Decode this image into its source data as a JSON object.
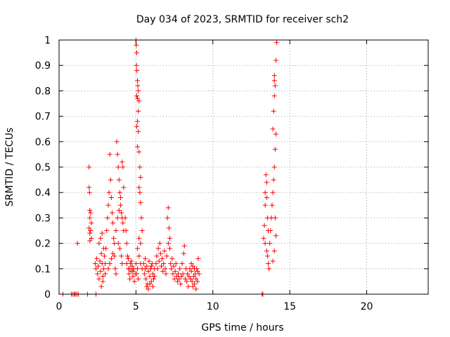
{
  "chart_data": {
    "type": "scatter",
    "title": "Day 034 of 2023, SRMTID for receiver sch2",
    "xlabel": "GPS time / hours",
    "ylabel": "SRMTID / TECUs",
    "xlim": [
      0,
      24
    ],
    "ylim": [
      0,
      1
    ],
    "xticks": [
      0,
      5,
      10,
      15,
      20
    ],
    "xtick_labels": [
      "0",
      "5",
      "10",
      "15",
      "20"
    ],
    "yticks": [
      0,
      0.1,
      0.2,
      0.3,
      0.4,
      0.5,
      0.6,
      0.7,
      0.8,
      0.9,
      1
    ],
    "ytick_labels": [
      "0",
      "0.1",
      "0.2",
      "0.3",
      "0.4",
      "0.5",
      "0.6",
      "0.7",
      "0.8",
      "0.9",
      "1"
    ],
    "grid": true,
    "marker": "plus",
    "color": "#ff0000",
    "series": [
      {
        "name": "SRMTID",
        "points": [
          [
            0.25,
            0.0
          ],
          [
            0.8,
            0.0
          ],
          [
            0.9,
            0.0
          ],
          [
            1.0,
            0.0
          ],
          [
            1.05,
            0.0
          ],
          [
            1.15,
            0.0
          ],
          [
            1.25,
            0.0
          ],
          [
            1.85,
            0.0
          ],
          [
            2.4,
            0.0
          ],
          [
            1.2,
            0.2
          ],
          [
            1.95,
            0.5
          ],
          [
            1.95,
            0.42
          ],
          [
            1.98,
            0.4
          ],
          [
            2.0,
            0.33
          ],
          [
            2.05,
            0.32
          ],
          [
            2.0,
            0.3
          ],
          [
            2.1,
            0.28
          ],
          [
            1.95,
            0.26
          ],
          [
            2.05,
            0.25
          ],
          [
            2.0,
            0.24
          ],
          [
            2.1,
            0.22
          ],
          [
            2.0,
            0.21
          ],
          [
            2.35,
            0.12
          ],
          [
            2.4,
            0.1
          ],
          [
            2.45,
            0.14
          ],
          [
            2.5,
            0.08
          ],
          [
            2.55,
            0.11
          ],
          [
            2.6,
            0.06
          ],
          [
            2.65,
            0.13
          ],
          [
            2.7,
            0.09
          ],
          [
            2.75,
            0.16
          ],
          [
            2.8,
            0.12
          ],
          [
            2.85,
            0.05
          ],
          [
            2.9,
            0.1
          ],
          [
            2.95,
            0.15
          ],
          [
            3.0,
            0.08
          ],
          [
            2.6,
            0.2
          ],
          [
            2.7,
            0.22
          ],
          [
            2.8,
            0.24
          ],
          [
            2.9,
            0.18
          ],
          [
            2.75,
            0.03
          ],
          [
            2.85,
            0.07
          ],
          [
            3.0,
            0.12
          ],
          [
            3.05,
            0.18
          ],
          [
            3.1,
            0.25
          ],
          [
            3.15,
            0.3
          ],
          [
            3.2,
            0.35
          ],
          [
            3.25,
            0.4
          ],
          [
            3.3,
            0.55
          ],
          [
            3.35,
            0.45
          ],
          [
            3.4,
            0.38
          ],
          [
            3.45,
            0.32
          ],
          [
            3.5,
            0.28
          ],
          [
            3.55,
            0.22
          ],
          [
            3.6,
            0.15
          ],
          [
            3.65,
            0.1
          ],
          [
            3.7,
            0.08
          ],
          [
            3.2,
            0.1
          ],
          [
            3.3,
            0.12
          ],
          [
            3.4,
            0.14
          ],
          [
            3.5,
            0.16
          ],
          [
            3.6,
            0.2
          ],
          [
            3.7,
            0.25
          ],
          [
            3.75,
            0.6
          ],
          [
            3.8,
            0.55
          ],
          [
            3.85,
            0.5
          ],
          [
            3.9,
            0.45
          ],
          [
            3.95,
            0.4
          ],
          [
            4.0,
            0.35
          ],
          [
            4.05,
            0.32
          ],
          [
            4.1,
            0.3
          ],
          [
            4.15,
            0.28
          ],
          [
            4.2,
            0.25
          ],
          [
            3.8,
            0.3
          ],
          [
            3.9,
            0.33
          ],
          [
            4.0,
            0.38
          ],
          [
            4.1,
            0.52
          ],
          [
            4.15,
            0.5
          ],
          [
            4.2,
            0.42
          ],
          [
            3.85,
            0.2
          ],
          [
            3.95,
            0.18
          ],
          [
            4.05,
            0.15
          ],
          [
            4.1,
            0.12
          ],
          [
            4.3,
            0.3
          ],
          [
            4.35,
            0.25
          ],
          [
            4.4,
            0.2
          ],
          [
            4.45,
            0.15
          ],
          [
            4.5,
            0.1
          ],
          [
            4.55,
            0.08
          ],
          [
            4.6,
            0.06
          ],
          [
            4.65,
            0.12
          ],
          [
            4.7,
            0.09
          ],
          [
            4.75,
            0.11
          ],
          [
            4.8,
            0.07
          ],
          [
            4.85,
            0.1
          ],
          [
            4.9,
            0.05
          ],
          [
            4.95,
            0.08
          ],
          [
            4.4,
            0.12
          ],
          [
            4.5,
            0.14
          ],
          [
            4.6,
            0.1
          ],
          [
            4.7,
            0.13
          ],
          [
            4.8,
            0.09
          ],
          [
            5.0,
            1.0
          ],
          [
            5.02,
            0.98
          ],
          [
            5.05,
            0.95
          ],
          [
            5.03,
            0.9
          ],
          [
            5.06,
            0.88
          ],
          [
            5.1,
            0.84
          ],
          [
            5.12,
            0.82
          ],
          [
            5.15,
            0.8
          ],
          [
            5.05,
            0.78
          ],
          [
            5.1,
            0.77
          ],
          [
            5.2,
            0.76
          ],
          [
            5.15,
            0.72
          ],
          [
            5.1,
            0.68
          ],
          [
            5.05,
            0.66
          ],
          [
            5.15,
            0.64
          ],
          [
            5.1,
            0.58
          ],
          [
            5.2,
            0.56
          ],
          [
            5.25,
            0.5
          ],
          [
            5.3,
            0.46
          ],
          [
            5.2,
            0.42
          ],
          [
            5.25,
            0.4
          ],
          [
            5.3,
            0.36
          ],
          [
            5.35,
            0.3
          ],
          [
            5.4,
            0.25
          ],
          [
            5.2,
            0.22
          ],
          [
            5.3,
            0.2
          ],
          [
            5.1,
            0.18
          ],
          [
            5.2,
            0.15
          ],
          [
            5.3,
            0.12
          ],
          [
            5.4,
            0.1
          ],
          [
            5.0,
            0.12
          ],
          [
            5.05,
            0.08
          ],
          [
            5.1,
            0.1
          ],
          [
            5.15,
            0.06
          ],
          [
            5.5,
            0.12
          ],
          [
            5.55,
            0.08
          ],
          [
            5.6,
            0.1
          ],
          [
            5.65,
            0.06
          ],
          [
            5.7,
            0.11
          ],
          [
            5.75,
            0.04
          ],
          [
            5.8,
            0.09
          ],
          [
            5.85,
            0.13
          ],
          [
            5.9,
            0.07
          ],
          [
            5.95,
            0.1
          ],
          [
            6.0,
            0.05
          ],
          [
            6.05,
            0.12
          ],
          [
            6.1,
            0.08
          ],
          [
            6.15,
            0.06
          ],
          [
            6.2,
            0.1
          ],
          [
            5.6,
            0.14
          ],
          [
            5.7,
            0.03
          ],
          [
            5.8,
            0.02
          ],
          [
            5.9,
            0.04
          ],
          [
            6.0,
            0.11
          ],
          [
            6.1,
            0.03
          ],
          [
            6.2,
            0.07
          ],
          [
            6.3,
            0.12
          ],
          [
            6.35,
            0.15
          ],
          [
            6.4,
            0.1
          ],
          [
            6.45,
            0.18
          ],
          [
            6.5,
            0.13
          ],
          [
            6.55,
            0.2
          ],
          [
            6.6,
            0.16
          ],
          [
            6.65,
            0.11
          ],
          [
            6.7,
            0.14
          ],
          [
            6.75,
            0.09
          ],
          [
            6.8,
            0.12
          ],
          [
            6.85,
            0.17
          ],
          [
            6.9,
            0.1
          ],
          [
            6.95,
            0.08
          ],
          [
            7.0,
            0.15
          ],
          [
            7.05,
            0.3
          ],
          [
            7.1,
            0.34
          ],
          [
            7.15,
            0.26
          ],
          [
            7.2,
            0.22
          ],
          [
            7.1,
            0.2
          ],
          [
            7.2,
            0.18
          ],
          [
            7.25,
            0.12
          ],
          [
            7.3,
            0.1
          ],
          [
            7.35,
            0.14
          ],
          [
            7.4,
            0.08
          ],
          [
            7.45,
            0.11
          ],
          [
            7.5,
            0.06
          ],
          [
            7.55,
            0.09
          ],
          [
            7.6,
            0.12
          ],
          [
            7.65,
            0.07
          ],
          [
            7.7,
            0.05
          ],
          [
            7.75,
            0.08
          ],
          [
            7.8,
            0.06
          ],
          [
            7.85,
            0.1
          ],
          [
            7.9,
            0.04
          ],
          [
            7.95,
            0.07
          ],
          [
            8.0,
            0.12
          ],
          [
            8.05,
            0.08
          ],
          [
            8.1,
            0.16
          ],
          [
            8.15,
            0.19
          ],
          [
            8.2,
            0.06
          ],
          [
            8.25,
            0.1
          ],
          [
            8.3,
            0.05
          ],
          [
            8.35,
            0.08
          ],
          [
            8.4,
            0.03
          ],
          [
            8.45,
            0.07
          ],
          [
            8.5,
            0.1
          ],
          [
            8.55,
            0.06
          ],
          [
            8.6,
            0.09
          ],
          [
            8.65,
            0.05
          ],
          [
            8.7,
            0.11
          ],
          [
            8.75,
            0.07
          ],
          [
            8.8,
            0.04
          ],
          [
            8.85,
            0.08
          ],
          [
            8.9,
            0.06
          ],
          [
            8.95,
            0.1
          ],
          [
            9.0,
            0.05
          ],
          [
            9.05,
            0.14
          ],
          [
            9.1,
            0.08
          ],
          [
            8.6,
            0.12
          ],
          [
            8.7,
            0.03
          ],
          [
            8.8,
            0.1
          ],
          [
            8.9,
            0.02
          ],
          [
            9.0,
            0.09
          ],
          [
            13.2,
            0.0
          ],
          [
            13.25,
            0.0
          ],
          [
            13.3,
            0.22
          ],
          [
            13.35,
            0.27
          ],
          [
            13.4,
            0.35
          ],
          [
            13.45,
            0.47
          ],
          [
            13.5,
            0.44
          ],
          [
            13.4,
            0.4
          ],
          [
            13.5,
            0.38
          ],
          [
            13.55,
            0.3
          ],
          [
            13.6,
            0.25
          ],
          [
            13.4,
            0.2
          ],
          [
            13.5,
            0.17
          ],
          [
            13.55,
            0.15
          ],
          [
            13.6,
            0.12
          ],
          [
            13.65,
            0.1
          ],
          [
            13.7,
            0.2
          ],
          [
            13.75,
            0.25
          ],
          [
            13.8,
            0.3
          ],
          [
            13.85,
            0.35
          ],
          [
            13.9,
            0.4
          ],
          [
            13.95,
            0.45
          ],
          [
            14.0,
            0.5
          ],
          [
            14.05,
            0.57
          ],
          [
            14.1,
            0.63
          ],
          [
            13.95,
            0.72
          ],
          [
            14.0,
            0.78
          ],
          [
            14.05,
            0.82
          ],
          [
            14.0,
            0.86
          ],
          [
            14.1,
            0.92
          ],
          [
            14.15,
            0.99
          ],
          [
            14.0,
            0.84
          ],
          [
            13.9,
            0.65
          ],
          [
            14.05,
            0.3
          ],
          [
            14.1,
            0.23
          ],
          [
            14.0,
            0.17
          ],
          [
            13.9,
            0.13
          ]
        ]
      }
    ]
  }
}
